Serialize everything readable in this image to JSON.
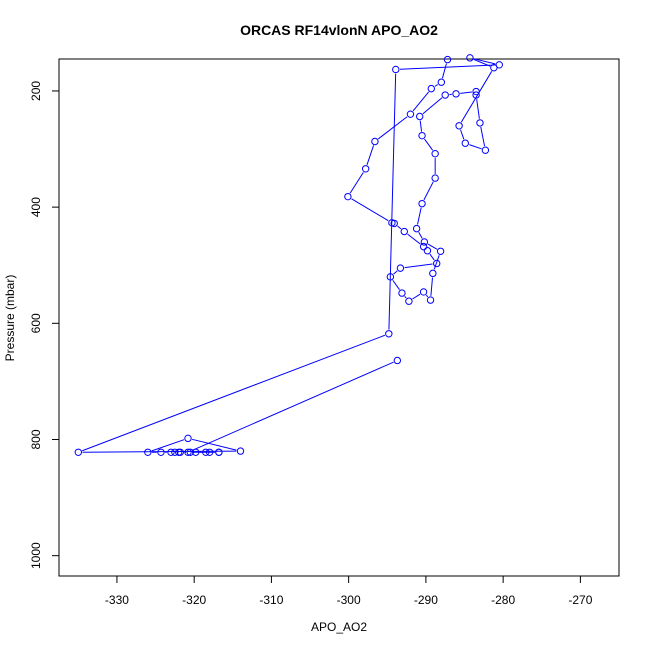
{
  "chart_data": {
    "type": "line",
    "title": "ORCAS RF14vlonN APO_AO2",
    "xlabel": "APO_AO2",
    "ylabel": "Pressure (mbar)",
    "xlim": [
      -337.5,
      -265
    ],
    "ylim": [
      1035,
      145
    ],
    "y_reversed": true,
    "x_ticks": [
      -330,
      -320,
      -310,
      -300,
      -290,
      -280,
      -270
    ],
    "x_tick_labels": [
      "-330",
      "-320",
      "-310",
      "-300",
      "-290",
      "-280",
      "-270"
    ],
    "y_ticks": [
      200,
      400,
      600,
      800,
      1000
    ],
    "y_tick_labels": [
      "200",
      "400",
      "600",
      "800",
      "1000"
    ],
    "grid": false,
    "legend": "none",
    "series_color": "#0000ff",
    "series": [
      {
        "markers": "open-circle",
        "x": [
          -287.2,
          -288.0,
          -289.3,
          -292.0,
          -296.6,
          -297.8,
          -300.1,
          -294.4,
          -294.1,
          -292.8,
          -290.3,
          -289.8,
          -288.6,
          -293.3,
          -294.6,
          -293.1,
          -292.2,
          -290.3,
          -289.4,
          -289.1,
          -288.1,
          -290.2,
          -291.2,
          -290.5,
          -288.8,
          -288.8,
          -290.5,
          -290.8,
          -287.5,
          -286.1,
          -283.5,
          -283.5,
          -283.0,
          -282.3,
          -284.9,
          -285.7,
          -281.2,
          -284.3,
          -280.5,
          -293.9,
          -294.8,
          -335.0,
          -314.0,
          -320.8,
          -326.0,
          -324.3,
          -323.0,
          -322.5,
          -322.0,
          -321.8,
          -320.5,
          -319.8,
          -318.5,
          -318.0,
          -316.8,
          -316.8,
          -320.8,
          -293.7
        ],
        "y": [
          146,
          185,
          196,
          240,
          287,
          334,
          382,
          427,
          428,
          442,
          468,
          475,
          497,
          505,
          520,
          548,
          562,
          546,
          560,
          514,
          476,
          460,
          437,
          394,
          350,
          308,
          277,
          244,
          207,
          205,
          201,
          207,
          255,
          302,
          290,
          260,
          160,
          143,
          155,
          163,
          618,
          822,
          820,
          798,
          822,
          822,
          822,
          822,
          822,
          822,
          822,
          822,
          822,
          822,
          822,
          822,
          822,
          664
        ]
      }
    ]
  }
}
